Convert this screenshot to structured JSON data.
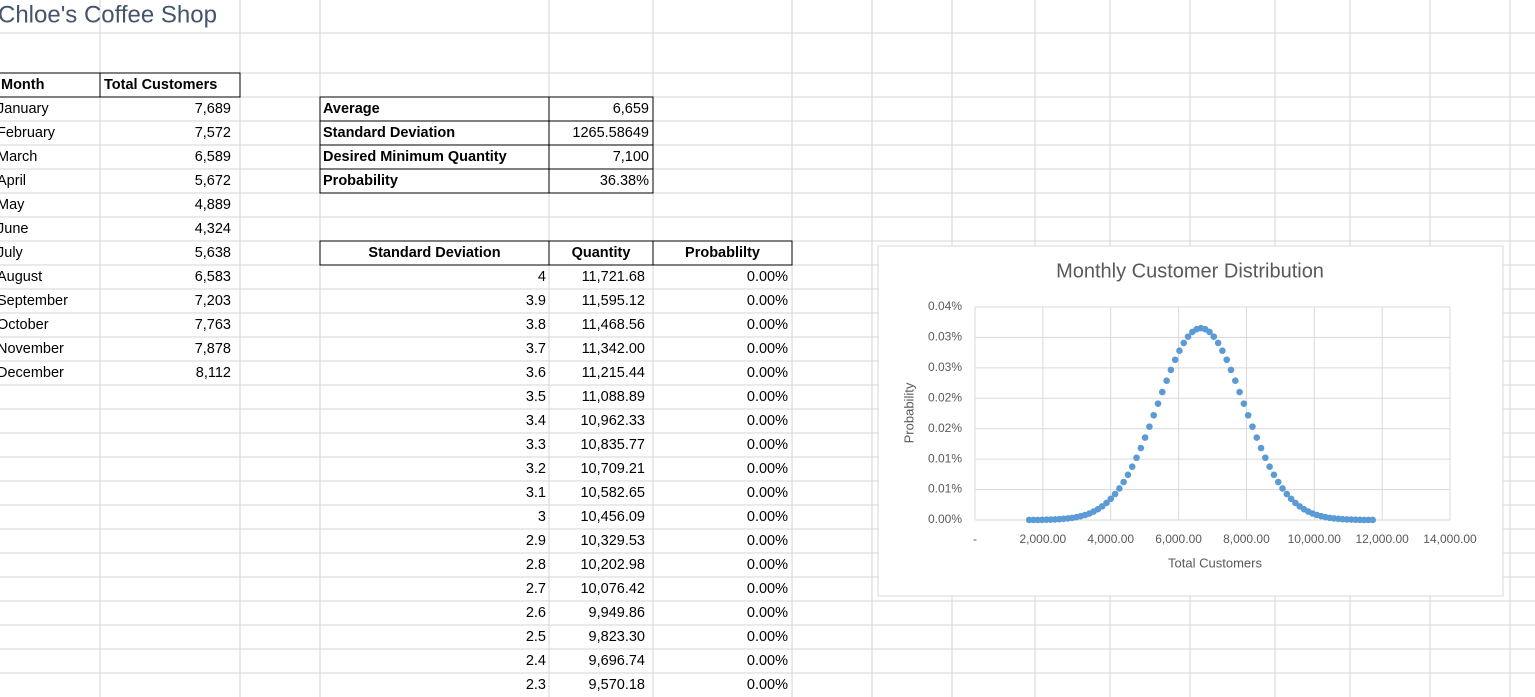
{
  "title": "Chloe's Coffee Shop",
  "monthly_table": {
    "headers": [
      "Month",
      "Total Customers"
    ],
    "rows": [
      [
        "January",
        "7,689"
      ],
      [
        "February",
        "7,572"
      ],
      [
        "March",
        "6,589"
      ],
      [
        "April",
        "5,672"
      ],
      [
        "May",
        "4,889"
      ],
      [
        "June",
        "4,324"
      ],
      [
        "July",
        "5,638"
      ],
      [
        "August",
        "6,583"
      ],
      [
        "September",
        "7,203"
      ],
      [
        "October",
        "7,763"
      ],
      [
        "November",
        "7,878"
      ],
      [
        "December",
        "8,112"
      ]
    ]
  },
  "summary": {
    "rows": [
      [
        "Average",
        "6,659"
      ],
      [
        "Standard Deviation",
        "1265.58649"
      ],
      [
        "Desired Minimum Quantity",
        "7,100"
      ],
      [
        "Probability",
        "36.38%"
      ]
    ]
  },
  "distribution_table": {
    "headers": [
      "Standard Deviation",
      "Quantity",
      "Probablilty"
    ],
    "rows": [
      [
        "4",
        "11,721.68",
        "0.00%"
      ],
      [
        "3.9",
        "11,595.12",
        "0.00%"
      ],
      [
        "3.8",
        "11,468.56",
        "0.00%"
      ],
      [
        "3.7",
        "11,342.00",
        "0.00%"
      ],
      [
        "3.6",
        "11,215.44",
        "0.00%"
      ],
      [
        "3.5",
        "11,088.89",
        "0.00%"
      ],
      [
        "3.4",
        "10,962.33",
        "0.00%"
      ],
      [
        "3.3",
        "10,835.77",
        "0.00%"
      ],
      [
        "3.2",
        "10,709.21",
        "0.00%"
      ],
      [
        "3.1",
        "10,582.65",
        "0.00%"
      ],
      [
        "3",
        "10,456.09",
        "0.00%"
      ],
      [
        "2.9",
        "10,329.53",
        "0.00%"
      ],
      [
        "2.8",
        "10,202.98",
        "0.00%"
      ],
      [
        "2.7",
        "10,076.42",
        "0.00%"
      ],
      [
        "2.6",
        "9,949.86",
        "0.00%"
      ],
      [
        "2.5",
        "9,823.30",
        "0.00%"
      ],
      [
        "2.4",
        "9,696.74",
        "0.00%"
      ],
      [
        "2.3",
        "9,570.18",
        "0.00%"
      ]
    ]
  },
  "chart_data": {
    "type": "scatter",
    "title": "Monthly Customer Distribution",
    "x_label": "Total Customers",
    "y_label": "Probability",
    "color": "#5b9bd5",
    "grid": true,
    "x": [
      1596.99,
      1723.55,
      1850.1,
      1976.66,
      2103.22,
      2229.78,
      2356.34,
      2482.9,
      2609.46,
      2736.02,
      2862.57,
      2989.13,
      3115.69,
      3242.25,
      3368.81,
      3495.37,
      3621.93,
      3748.48,
      3875.04,
      4001.6,
      4128.16,
      4254.72,
      4381.28,
      4507.84,
      4634.39,
      4760.95,
      4887.51,
      5014.07,
      5140.63,
      5267.19,
      5393.75,
      5520.31,
      5646.86,
      5773.42,
      5899.98,
      6026.54,
      6153.1,
      6279.66,
      6406.22,
      6532.77,
      6659.33,
      6785.89,
      6912.45,
      7039.01,
      7165.57,
      7292.13,
      7418.69,
      7545.24,
      7671.8,
      7798.36,
      7924.92,
      8051.48,
      8178.04,
      8304.6,
      8431.15,
      8557.71,
      8684.27,
      8810.83,
      8937.39,
      9063.95,
      9190.51,
      9317.06,
      9443.62,
      9570.18,
      9696.74,
      9823.3,
      9949.86,
      10076.42,
      10202.98,
      10329.53,
      10456.09,
      10582.65,
      10709.21,
      10835.77,
      10962.33,
      11088.89,
      11215.44,
      11342.0,
      11468.56,
      11595.12,
      11721.68
    ],
    "values": [
      1e-05,
      2e-05,
      2e-05,
      3e-05,
      5e-05,
      7e-05,
      0.0001,
      0.00014,
      0.00019,
      0.00026,
      0.00035,
      0.00047,
      0.00063,
      0.00082,
      0.00107,
      0.00138,
      0.00177,
      0.00224,
      0.0028,
      0.00348,
      0.00427,
      0.00518,
      0.00624,
      0.00743,
      0.00876,
      0.01023,
      0.01183,
      0.01354,
      0.01534,
      0.01721,
      0.01912,
      0.02102,
      0.02289,
      0.02467,
      0.02633,
      0.02782,
      0.0291,
      0.03013,
      0.0309,
      0.03136,
      0.03152,
      0.03136,
      0.0309,
      0.03013,
      0.0291,
      0.02782,
      0.02633,
      0.02467,
      0.02289,
      0.02102,
      0.01912,
      0.01721,
      0.01534,
      0.01354,
      0.01183,
      0.01023,
      0.00876,
      0.00743,
      0.00624,
      0.00518,
      0.00427,
      0.00348,
      0.0028,
      0.00224,
      0.00177,
      0.00138,
      0.00107,
      0.00082,
      0.00063,
      0.00047,
      0.00035,
      0.00026,
      0.00019,
      0.00014,
      0.0001,
      7e-05,
      5e-05,
      3e-05,
      2e-05,
      2e-05,
      1e-05
    ],
    "xlim": [
      0,
      14000
    ],
    "xticks": [
      {
        "value": 0,
        "label": "-"
      },
      {
        "value": 2000,
        "label": "2,000.00"
      },
      {
        "value": 4000,
        "label": "4,000.00"
      },
      {
        "value": 6000,
        "label": "6,000.00"
      },
      {
        "value": 8000,
        "label": "8,000.00"
      },
      {
        "value": 10000,
        "label": "10,000.00"
      },
      {
        "value": 12000,
        "label": "12,000.00"
      },
      {
        "value": 14000,
        "label": "14,000.00"
      }
    ],
    "ylim": [
      0,
      0.035
    ],
    "yticks": [
      {
        "value": 0,
        "label": "0.00%"
      },
      {
        "value": 0.005,
        "label": "0.01%"
      },
      {
        "value": 0.01,
        "label": "0.01%"
      },
      {
        "value": 0.015,
        "label": "0.02%"
      },
      {
        "value": 0.02,
        "label": "0.02%"
      },
      {
        "value": 0.025,
        "label": "0.03%"
      },
      {
        "value": 0.03,
        "label": "0.03%"
      },
      {
        "value": 0.035,
        "label": "0.04%"
      }
    ]
  }
}
